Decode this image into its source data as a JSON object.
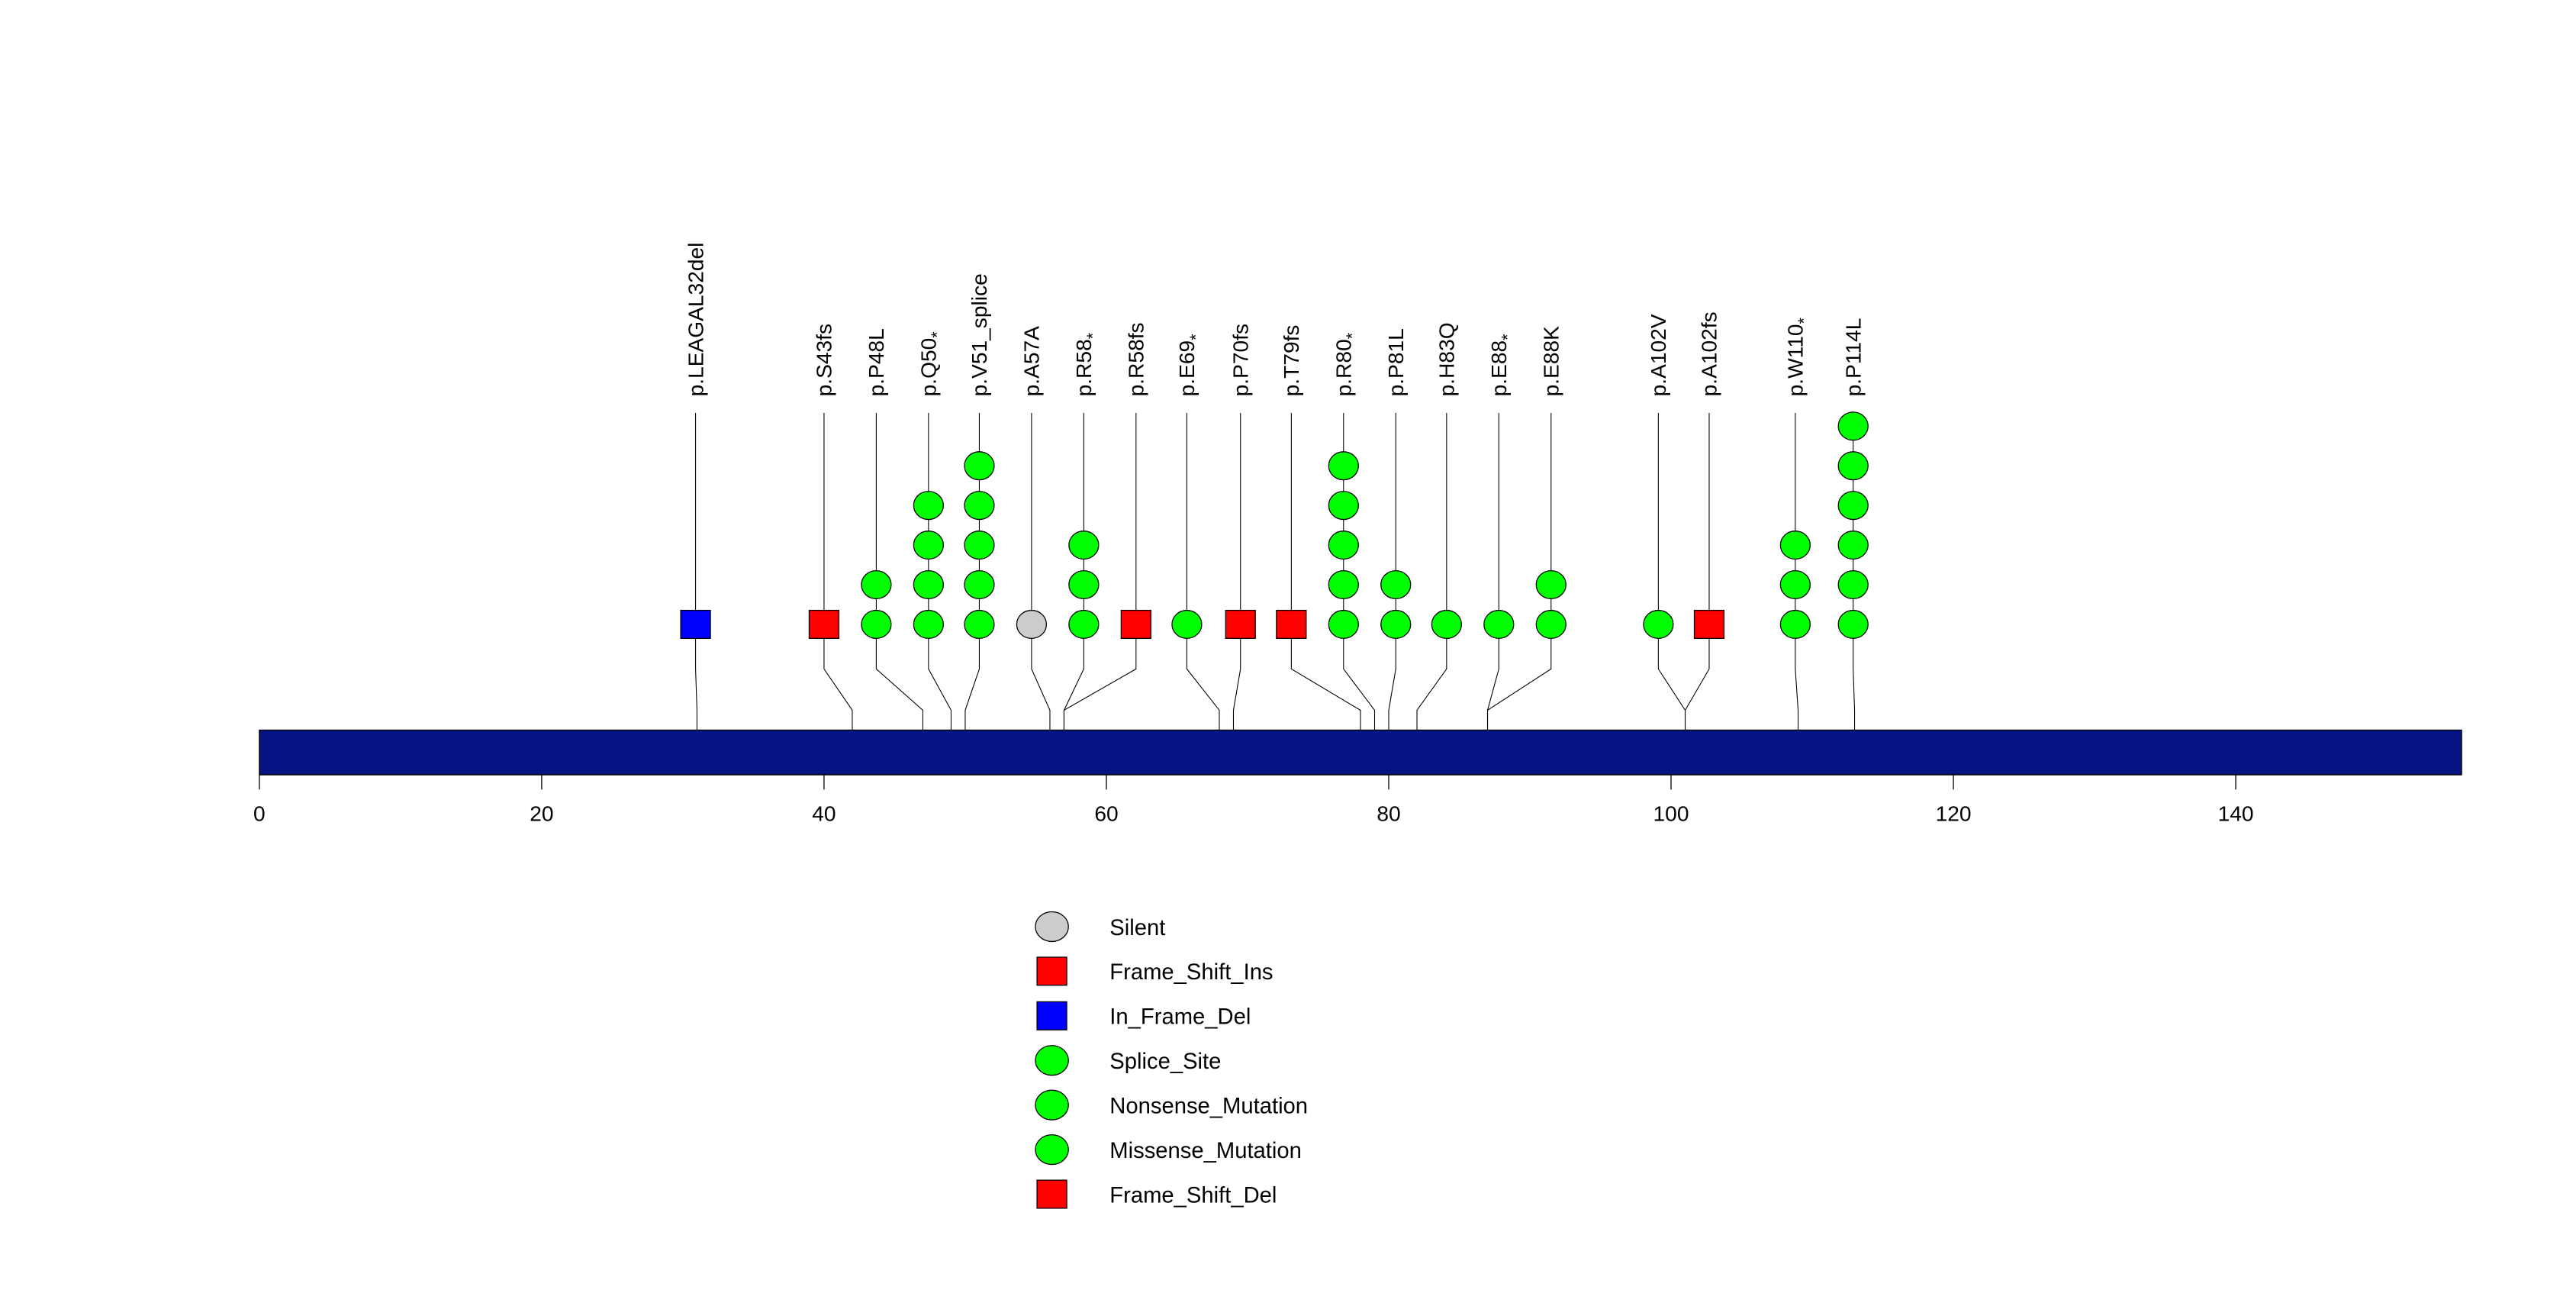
{
  "chart_data": {
    "type": "lollipop",
    "title": "",
    "xlabel": "",
    "ylabel": "",
    "xlim": [
      0,
      156
    ],
    "x_ticks": [
      0,
      20,
      40,
      60,
      80,
      100,
      120,
      140
    ],
    "protein_length": 156,
    "colors": {
      "protein_bar": "#061483",
      "silent": "#cccccc",
      "frame_shift": "#ff0000",
      "in_frame_del": "#0000ff",
      "green_mutation": "#00ff00"
    },
    "mutations": [
      {
        "label": "p.LEAGAL32del",
        "star": false,
        "position": 31,
        "display_position": 30.9,
        "count": 1,
        "type": "In_Frame_Del"
      },
      {
        "label": "p.S43fs",
        "star": false,
        "position": 42,
        "display_position": 40.0,
        "count": 1,
        "type": "Frame_Shift_Ins"
      },
      {
        "label": "p.P48L",
        "star": false,
        "position": 47,
        "display_position": 43.7,
        "count": 2,
        "type": "Missense_Mutation"
      },
      {
        "label": "p.Q50",
        "star": true,
        "position": 49,
        "display_position": 47.4,
        "count": 4,
        "type": "Nonsense_Mutation"
      },
      {
        "label": "p.V51_splice",
        "star": false,
        "position": 50,
        "display_position": 51.0,
        "count": 5,
        "type": "Splice_Site"
      },
      {
        "label": "p.A57A",
        "star": false,
        "position": 56,
        "display_position": 54.7,
        "count": 1,
        "type": "Silent"
      },
      {
        "label": "p.R58",
        "star": true,
        "position": 57,
        "display_position": 58.4,
        "count": 3,
        "type": "Nonsense_Mutation"
      },
      {
        "label": "p.R58fs",
        "star": false,
        "position": 57,
        "display_position": 62.1,
        "count": 1,
        "type": "Frame_Shift_Del"
      },
      {
        "label": "p.E69",
        "star": true,
        "position": 68,
        "display_position": 65.7,
        "count": 1,
        "type": "Nonsense_Mutation"
      },
      {
        "label": "p.P70fs",
        "star": false,
        "position": 69,
        "display_position": 69.5,
        "count": 1,
        "type": "Frame_Shift_Del"
      },
      {
        "label": "p.T79fs",
        "star": false,
        "position": 78,
        "display_position": 73.1,
        "count": 1,
        "type": "Frame_Shift_Del"
      },
      {
        "label": "p.R80",
        "star": true,
        "position": 79,
        "display_position": 76.8,
        "count": 5,
        "type": "Nonsense_Mutation"
      },
      {
        "label": "p.P81L",
        "star": false,
        "position": 80,
        "display_position": 80.5,
        "count": 2,
        "type": "Missense_Mutation"
      },
      {
        "label": "p.H83Q",
        "star": false,
        "position": 82,
        "display_position": 84.1,
        "count": 1,
        "type": "Missense_Mutation"
      },
      {
        "label": "p.E88",
        "star": true,
        "position": 87,
        "display_position": 87.8,
        "count": 1,
        "type": "Nonsense_Mutation"
      },
      {
        "label": "p.E88K",
        "star": false,
        "position": 87,
        "display_position": 91.5,
        "count": 2,
        "type": "Missense_Mutation"
      },
      {
        "label": "p.A102V",
        "star": false,
        "position": 101,
        "display_position": 99.1,
        "count": 1,
        "type": "Missense_Mutation"
      },
      {
        "label": "p.A102fs",
        "star": false,
        "position": 101,
        "display_position": 102.7,
        "count": 1,
        "type": "Frame_Shift_Del"
      },
      {
        "label": "p.W110",
        "star": true,
        "position": 109,
        "display_position": 108.8,
        "count": 3,
        "type": "Nonsense_Mutation"
      },
      {
        "label": "p.P114L",
        "star": false,
        "position": 113,
        "display_position": 112.9,
        "count": 6,
        "type": "Missense_Mutation"
      }
    ],
    "legend": {
      "placement": "bottom-center",
      "star_symbol": "*",
      "entries": [
        {
          "label": "Silent",
          "shape": "circle",
          "color": "#cccccc"
        },
        {
          "label": "Frame_Shift_Ins",
          "shape": "square",
          "color": "#ff0000"
        },
        {
          "label": "In_Frame_Del",
          "shape": "square",
          "color": "#0000ff"
        },
        {
          "label": "Splice_Site",
          "shape": "circle",
          "color": "#00ff00"
        },
        {
          "label": "Nonsense_Mutation",
          "shape": "circle",
          "color": "#00ff00"
        },
        {
          "label": "Missense_Mutation",
          "shape": "circle",
          "color": "#00ff00"
        },
        {
          "label": "Frame_Shift_Del",
          "shape": "square",
          "color": "#ff0000"
        }
      ]
    }
  }
}
